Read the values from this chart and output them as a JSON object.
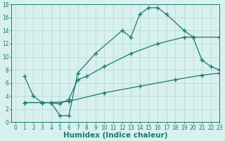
{
  "line1_x": [
    1,
    2,
    3,
    4,
    5,
    6,
    7,
    9,
    12,
    13,
    14,
    15,
    16,
    17,
    19,
    20,
    21,
    22,
    23
  ],
  "line1_y": [
    7,
    4,
    3,
    3,
    1,
    1,
    7.5,
    10.5,
    14,
    13,
    16.5,
    17.5,
    17.5,
    16.5,
    14,
    13,
    9.5,
    8.5,
    8
  ],
  "line2_x": [
    1,
    3,
    4,
    5,
    6,
    7,
    8,
    10,
    13,
    16,
    19,
    20,
    23
  ],
  "line2_y": [
    3,
    3,
    3,
    2.8,
    3.5,
    6.5,
    7,
    8.5,
    10.5,
    12,
    13,
    13,
    13
  ],
  "line3_x": [
    1,
    3,
    4,
    6,
    10,
    14,
    18,
    21,
    23
  ],
  "line3_y": [
    3,
    3,
    3,
    3.2,
    4.5,
    5.5,
    6.5,
    7.2,
    7.5
  ],
  "line_color": "#1a7a6e",
  "bg_color": "#d8f0ee",
  "grid_color": "#b0d8d4",
  "xlabel": "Humidex (Indice chaleur)",
  "xlim": [
    -0.5,
    23
  ],
  "ylim": [
    0,
    18
  ],
  "xticks": [
    0,
    1,
    2,
    3,
    4,
    5,
    6,
    7,
    8,
    9,
    10,
    11,
    12,
    13,
    14,
    15,
    16,
    17,
    18,
    19,
    20,
    21,
    22,
    23
  ],
  "yticks": [
    0,
    2,
    4,
    6,
    8,
    10,
    12,
    14,
    16,
    18
  ],
  "tick_fontsize": 5.5,
  "xlabel_fontsize": 7.5
}
